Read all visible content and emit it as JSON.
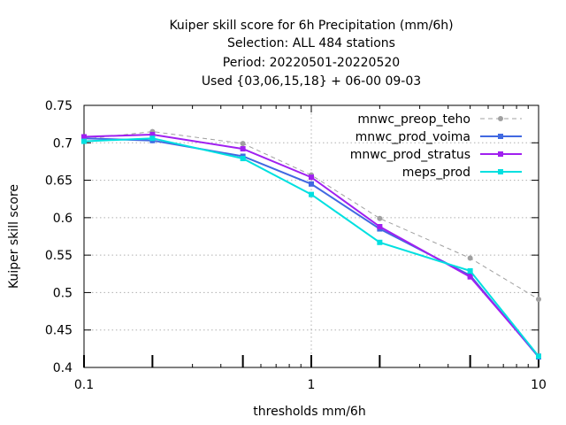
{
  "chart_data": {
    "type": "line",
    "title": [
      "Kuiper skill score  for 6h Precipitation (mm/6h)",
      "Selection: ALL    484 stations",
      "Period: 20220501-20220520",
      "Used {03,06,15,18} + 06-00 09-03"
    ],
    "xlabel": "thresholds mm/6h",
    "ylabel": "Kuiper skill score",
    "xscale": "log",
    "xlim": [
      0.1,
      10
    ],
    "ylim": [
      0.4,
      0.75
    ],
    "xticks": [
      {
        "value": 0.1,
        "label": "0.1"
      },
      {
        "value": 1,
        "label": "1"
      },
      {
        "value": 10,
        "label": "10"
      }
    ],
    "yticks": [
      {
        "value": 0.4,
        "label": "0.4"
      },
      {
        "value": 0.45,
        "label": "0.45"
      },
      {
        "value": 0.5,
        "label": "0.5"
      },
      {
        "value": 0.55,
        "label": "0.55"
      },
      {
        "value": 0.6,
        "label": "0.6"
      },
      {
        "value": 0.65,
        "label": "0.65"
      },
      {
        "value": 0.7,
        "label": "0.7"
      },
      {
        "value": 0.75,
        "label": "0.75"
      }
    ],
    "x": [
      0.1,
      0.2,
      0.5,
      1,
      2,
      5,
      10
    ],
    "grid": true,
    "legend": "top-right",
    "series": [
      {
        "name": "mnwc_preop_teho",
        "color": "#a0a0a0",
        "dashed": true,
        "marker": "circle",
        "values": [
          0.705,
          0.715,
          0.699,
          0.657,
          0.599,
          0.546,
          0.491
        ]
      },
      {
        "name": "mnwc_prod_voima",
        "color": "#4169e1",
        "dashed": false,
        "marker": "square",
        "values": [
          0.706,
          0.703,
          0.682,
          0.645,
          0.585,
          0.523,
          0.414
        ]
      },
      {
        "name": "mnwc_prod_stratus",
        "color": "#a020f0",
        "dashed": false,
        "marker": "square",
        "values": [
          0.708,
          0.711,
          0.692,
          0.654,
          0.588,
          0.521,
          0.415
        ]
      },
      {
        "name": "meps_prod",
        "color": "#00e0e0",
        "dashed": false,
        "marker": "square",
        "values": [
          0.702,
          0.706,
          0.679,
          0.631,
          0.567,
          0.529,
          0.415
        ]
      }
    ]
  }
}
